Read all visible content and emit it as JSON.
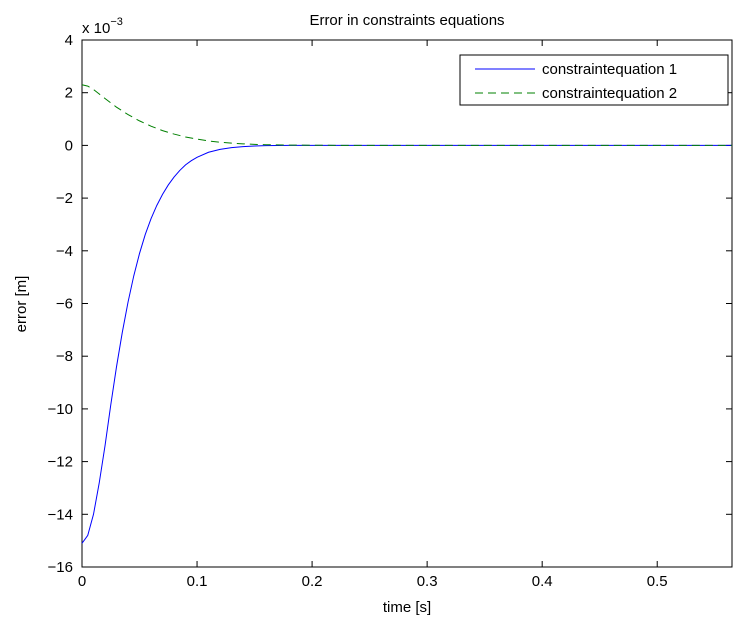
{
  "chart_data": {
    "type": "line",
    "title": "Error in constraints equations",
    "xlabel": "time [s]",
    "ylabel": "error [m]",
    "y_exponent_label": {
      "base": "x 10",
      "exponent": "−3"
    },
    "xlim": [
      0,
      0.565
    ],
    "ylim": [
      -16,
      4
    ],
    "x_ticks": [
      0,
      0.1,
      0.2,
      0.3,
      0.4,
      0.5
    ],
    "x_tick_labels": [
      "0",
      "0.1",
      "0.2",
      "0.3",
      "0.4",
      "0.5"
    ],
    "y_ticks": [
      -16,
      -14,
      -12,
      -10,
      -8,
      -6,
      -4,
      -2,
      0,
      2,
      4
    ],
    "y_tick_labels": [
      "−16",
      "−14",
      "−12",
      "−10",
      "−8",
      "−6",
      "−4",
      "−2",
      "0",
      "2",
      "4"
    ],
    "legend_position": "top-right",
    "grid": false,
    "series": [
      {
        "name": "constraintequation 1",
        "color": "#0000ff",
        "dash": "solid",
        "x": [
          0,
          0.005,
          0.01,
          0.015,
          0.02,
          0.025,
          0.03,
          0.035,
          0.04,
          0.045,
          0.05,
          0.055,
          0.06,
          0.065,
          0.07,
          0.075,
          0.08,
          0.085,
          0.09,
          0.095,
          0.1,
          0.11,
          0.12,
          0.13,
          0.14,
          0.15,
          0.16,
          0.18,
          0.2,
          0.25,
          0.3,
          0.4,
          0.5,
          0.565
        ],
        "y": [
          -15.1,
          -14.8,
          -14.0,
          -12.8,
          -11.4,
          -9.85,
          -8.4,
          -7.1,
          -5.95,
          -4.95,
          -4.1,
          -3.38,
          -2.78,
          -2.28,
          -1.86,
          -1.5,
          -1.2,
          -0.95,
          -0.74,
          -0.58,
          -0.45,
          -0.26,
          -0.15,
          -0.085,
          -0.045,
          -0.022,
          -0.01,
          0.0,
          0.0,
          0.0,
          0.0,
          0.0,
          0.0,
          0.0
        ]
      },
      {
        "name": "constraintequation 2",
        "color": "#008000",
        "dash": "dashed",
        "x": [
          0,
          0.005,
          0.01,
          0.015,
          0.02,
          0.03,
          0.04,
          0.05,
          0.06,
          0.07,
          0.08,
          0.09,
          0.1,
          0.11,
          0.12,
          0.13,
          0.14,
          0.15,
          0.16,
          0.18,
          0.2,
          0.25,
          0.3,
          0.4,
          0.5,
          0.565
        ],
        "y": [
          2.3,
          2.25,
          2.12,
          1.95,
          1.78,
          1.45,
          1.17,
          0.93,
          0.73,
          0.56,
          0.43,
          0.32,
          0.24,
          0.17,
          0.12,
          0.085,
          0.06,
          0.04,
          0.027,
          0.012,
          0.005,
          0.0,
          0.0,
          0.0,
          0.0,
          0.0
        ]
      }
    ]
  }
}
